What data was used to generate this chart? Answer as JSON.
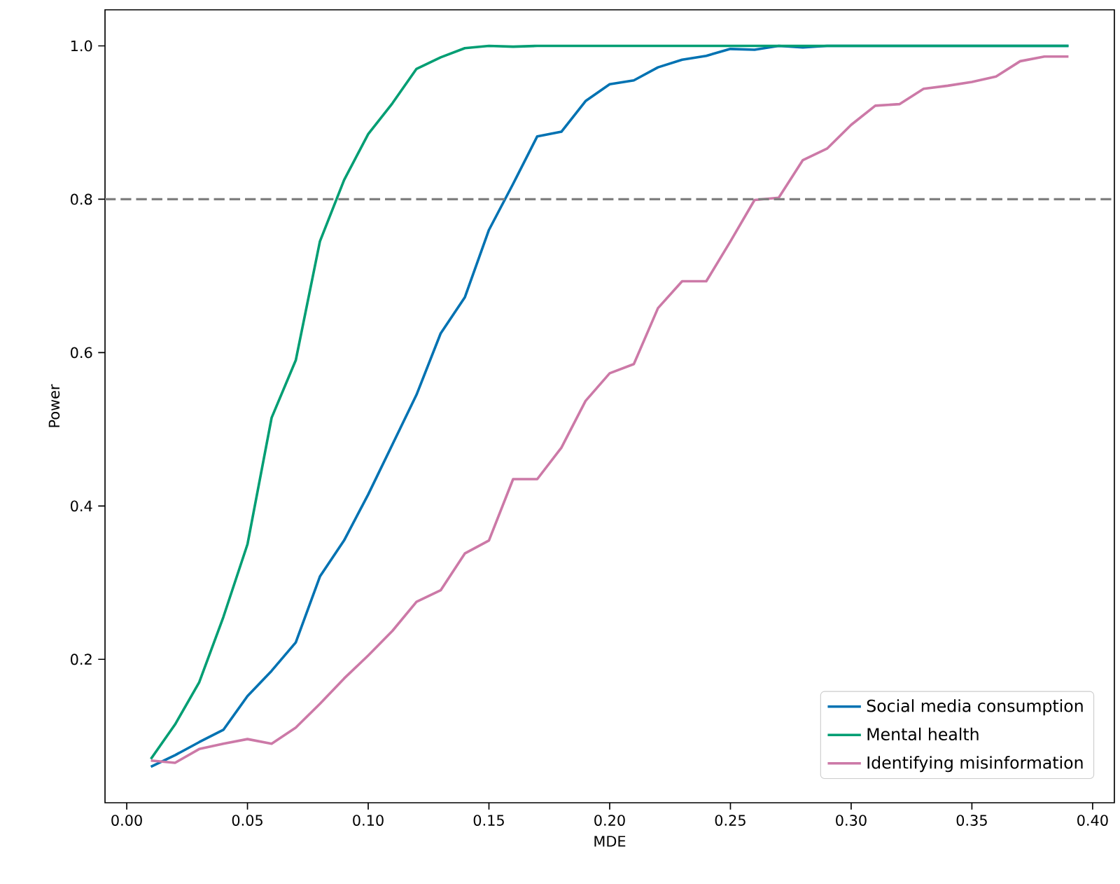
{
  "chart_data": {
    "type": "line",
    "xlabel": "MDE",
    "ylabel": "Power",
    "x": [
      0.01,
      0.02,
      0.03,
      0.04,
      0.05,
      0.06,
      0.07,
      0.08,
      0.09,
      0.1,
      0.11,
      0.12,
      0.13,
      0.14,
      0.15,
      0.16,
      0.17,
      0.18,
      0.19,
      0.2,
      0.21,
      0.22,
      0.23,
      0.24,
      0.25,
      0.26,
      0.27,
      0.28,
      0.29,
      0.3,
      0.31,
      0.32,
      0.33,
      0.34,
      0.35,
      0.36,
      0.37,
      0.38,
      0.39
    ],
    "series": [
      {
        "name": "Social media consumption",
        "color": "#0072b2",
        "values": [
          0.06,
          0.075,
          0.092,
          0.108,
          0.152,
          0.185,
          0.222,
          0.308,
          0.355,
          0.415,
          0.48,
          0.545,
          0.625,
          0.672,
          0.76,
          0.82,
          0.882,
          0.888,
          0.928,
          0.95,
          0.955,
          0.972,
          0.982,
          0.987,
          0.996,
          0.995,
          1.0,
          0.998,
          1.0,
          1.0,
          1.0,
          1.0,
          1.0,
          1.0,
          1.0,
          1.0,
          1.0,
          1.0,
          1.0
        ]
      },
      {
        "name": "Mental health",
        "color": "#009e73",
        "values": [
          0.07,
          0.115,
          0.17,
          0.255,
          0.35,
          0.515,
          0.59,
          0.745,
          0.825,
          0.885,
          0.925,
          0.97,
          0.985,
          0.997,
          1.0,
          0.999,
          1.0,
          1.0,
          1.0,
          1.0,
          1.0,
          1.0,
          1.0,
          1.0,
          1.0,
          1.0,
          1.0,
          1.0,
          1.0,
          1.0,
          1.0,
          1.0,
          1.0,
          1.0,
          1.0,
          1.0,
          1.0,
          1.0,
          1.0
        ]
      },
      {
        "name": "Identifying misinformation",
        "color": "#cc79a7",
        "values": [
          0.068,
          0.065,
          0.083,
          0.09,
          0.096,
          0.09,
          0.111,
          0.142,
          0.175,
          0.205,
          0.237,
          0.275,
          0.29,
          0.338,
          0.355,
          0.435,
          0.435,
          0.476,
          0.537,
          0.573,
          0.585,
          0.658,
          0.693,
          0.693,
          0.745,
          0.799,
          0.802,
          0.851,
          0.866,
          0.897,
          0.922,
          0.924,
          0.944,
          0.948,
          0.953,
          0.96,
          0.98,
          0.986,
          0.986
        ]
      }
    ],
    "xlim": [
      -0.009,
      0.409
    ],
    "ylim": [
      0.013,
      1.047
    ],
    "xticks": [
      {
        "value": 0,
        "label": "0.00"
      },
      {
        "value": 0.05,
        "label": "0.05"
      },
      {
        "value": 0.1,
        "label": "0.10"
      },
      {
        "value": 0.15,
        "label": "0.15"
      },
      {
        "value": 0.2,
        "label": "0.20"
      },
      {
        "value": 0.25,
        "label": "0.25"
      },
      {
        "value": 0.3,
        "label": "0.30"
      },
      {
        "value": 0.35,
        "label": "0.35"
      },
      {
        "value": 0.4,
        "label": "0.40"
      }
    ],
    "yticks": [
      {
        "value": 0.2,
        "label": "0.2"
      },
      {
        "value": 0.4,
        "label": "0.4"
      },
      {
        "value": 0.6,
        "label": "0.6"
      },
      {
        "value": 0.8,
        "label": "0.8"
      },
      {
        "value": 1.0,
        "label": "1.0"
      }
    ],
    "ref_lines": [
      {
        "axis": "y",
        "value": 0.8,
        "color": "#808080",
        "line_style": "dashed"
      }
    ],
    "legend": "bottom right"
  }
}
